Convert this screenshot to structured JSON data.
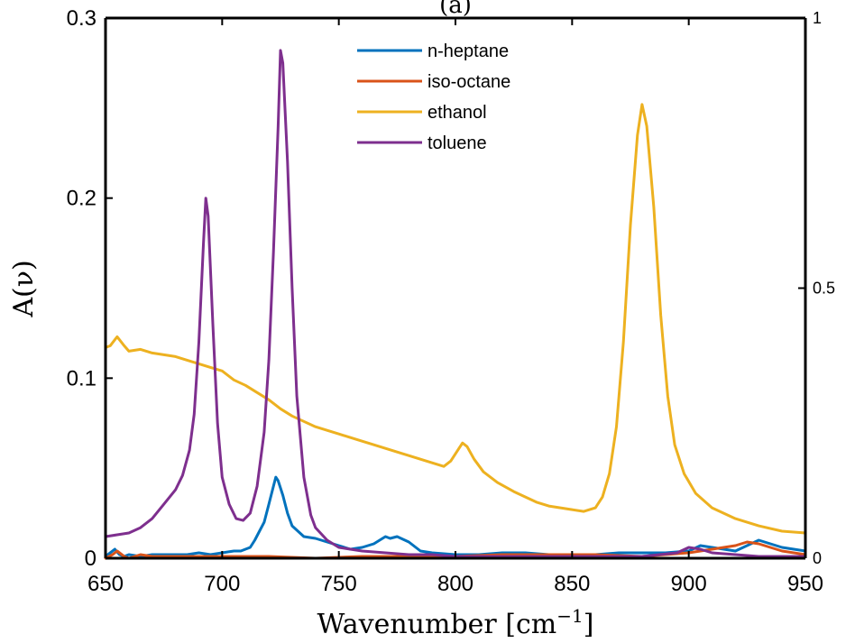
{
  "chart_data": {
    "type": "line",
    "title": "(a)",
    "xlabel": "Wavenumber [cm",
    "xlabel_superscript": "−1",
    "xlabel_close": "]",
    "ylabel": "A(ν)",
    "xlim": [
      650,
      950
    ],
    "ylim": [
      0,
      0.3
    ],
    "y2lim": [
      0,
      1
    ],
    "xticks": [
      650,
      700,
      750,
      800,
      850,
      900,
      950
    ],
    "yticks": [
      0,
      0.1,
      0.2,
      0.3
    ],
    "ytick_labels": [
      "0",
      "0.1",
      "0.2",
      "0.3"
    ],
    "y2ticks": [
      0,
      0.5,
      1
    ],
    "y2tick_labels": [
      "0",
      "0.5",
      "1"
    ],
    "grid": false,
    "legend_position": "top-center",
    "series": [
      {
        "name": "n-heptane",
        "color": "#0072BD",
        "x": [
          650,
          652,
          654,
          656,
          658,
          660,
          665,
          670,
          675,
          680,
          685,
          690,
          695,
          700,
          705,
          708,
          710,
          712,
          714,
          716,
          718,
          720,
          722,
          723,
          724,
          726,
          728,
          730,
          735,
          740,
          745,
          750,
          755,
          760,
          765,
          770,
          772,
          775,
          780,
          785,
          790,
          800,
          810,
          820,
          830,
          840,
          850,
          860,
          870,
          880,
          890,
          900,
          905,
          910,
          915,
          920,
          925,
          930,
          935,
          940,
          945,
          950
        ],
        "y": [
          0.001,
          0.003,
          0.005,
          0.002,
          0.001,
          0.002,
          0.001,
          0.002,
          0.002,
          0.002,
          0.002,
          0.003,
          0.002,
          0.003,
          0.004,
          0.004,
          0.005,
          0.006,
          0.01,
          0.015,
          0.02,
          0.03,
          0.04,
          0.045,
          0.043,
          0.035,
          0.025,
          0.018,
          0.012,
          0.011,
          0.009,
          0.007,
          0.005,
          0.006,
          0.008,
          0.012,
          0.011,
          0.012,
          0.009,
          0.004,
          0.003,
          0.002,
          0.002,
          0.003,
          0.003,
          0.002,
          0.002,
          0.002,
          0.003,
          0.003,
          0.003,
          0.004,
          0.007,
          0.006,
          0.005,
          0.004,
          0.007,
          0.01,
          0.008,
          0.006,
          0.005,
          0.004
        ]
      },
      {
        "name": "iso-octane",
        "color": "#D95319",
        "x": [
          650,
          653,
          655,
          658,
          660,
          665,
          670,
          675,
          680,
          700,
          720,
          740,
          760,
          780,
          800,
          820,
          840,
          860,
          880,
          900,
          910,
          915,
          920,
          925,
          930,
          935,
          940,
          950
        ],
        "y": [
          0.0,
          0.002,
          0.004,
          0.001,
          0.0,
          0.002,
          0.001,
          0.001,
          0.001,
          0.001,
          0.001,
          0.0,
          0.001,
          0.001,
          0.001,
          0.002,
          0.002,
          0.002,
          0.001,
          0.003,
          0.005,
          0.006,
          0.007,
          0.009,
          0.008,
          0.006,
          0.004,
          0.002
        ]
      },
      {
        "name": "ethanol",
        "color": "#EDB120",
        "x": [
          650,
          652,
          655,
          658,
          660,
          665,
          670,
          675,
          680,
          685,
          690,
          695,
          700,
          705,
          710,
          715,
          720,
          725,
          730,
          735,
          740,
          745,
          750,
          755,
          760,
          765,
          770,
          775,
          780,
          785,
          790,
          795,
          798,
          801,
          803,
          805,
          808,
          812,
          818,
          825,
          830,
          835,
          840,
          845,
          850,
          855,
          860,
          863,
          866,
          869,
          872,
          875,
          878,
          880,
          882,
          885,
          888,
          891,
          894,
          898,
          903,
          910,
          920,
          930,
          940,
          950
        ],
        "y": [
          0.117,
          0.118,
          0.123,
          0.118,
          0.115,
          0.116,
          0.114,
          0.113,
          0.112,
          0.11,
          0.108,
          0.106,
          0.104,
          0.099,
          0.096,
          0.092,
          0.088,
          0.083,
          0.079,
          0.076,
          0.073,
          0.071,
          0.069,
          0.067,
          0.065,
          0.063,
          0.061,
          0.059,
          0.057,
          0.055,
          0.053,
          0.051,
          0.054,
          0.06,
          0.064,
          0.062,
          0.055,
          0.048,
          0.042,
          0.037,
          0.034,
          0.031,
          0.029,
          0.028,
          0.027,
          0.026,
          0.028,
          0.034,
          0.047,
          0.073,
          0.12,
          0.185,
          0.235,
          0.252,
          0.24,
          0.195,
          0.135,
          0.09,
          0.063,
          0.047,
          0.036,
          0.028,
          0.022,
          0.018,
          0.015,
          0.014
        ]
      },
      {
        "name": "toluene",
        "color": "#7E2F8E",
        "x": [
          650,
          655,
          660,
          665,
          670,
          675,
          680,
          683,
          686,
          688,
          690,
          692,
          693,
          694,
          696,
          698,
          700,
          703,
          706,
          709,
          712,
          715,
          718,
          720,
          722,
          724,
          725,
          726,
          728,
          730,
          732,
          735,
          738,
          740,
          745,
          750,
          760,
          770,
          780,
          790,
          800,
          820,
          840,
          860,
          880,
          895,
          900,
          905,
          910,
          920,
          930,
          940,
          950
        ],
        "y": [
          0.012,
          0.013,
          0.014,
          0.017,
          0.022,
          0.03,
          0.038,
          0.046,
          0.06,
          0.08,
          0.12,
          0.175,
          0.2,
          0.19,
          0.13,
          0.075,
          0.045,
          0.03,
          0.022,
          0.021,
          0.025,
          0.04,
          0.07,
          0.11,
          0.17,
          0.24,
          0.282,
          0.275,
          0.22,
          0.15,
          0.09,
          0.045,
          0.024,
          0.017,
          0.01,
          0.006,
          0.004,
          0.003,
          0.002,
          0.002,
          0.001,
          0.001,
          0.001,
          0.001,
          0.001,
          0.003,
          0.006,
          0.005,
          0.003,
          0.002,
          0.001,
          0.001,
          0.001
        ]
      }
    ]
  }
}
